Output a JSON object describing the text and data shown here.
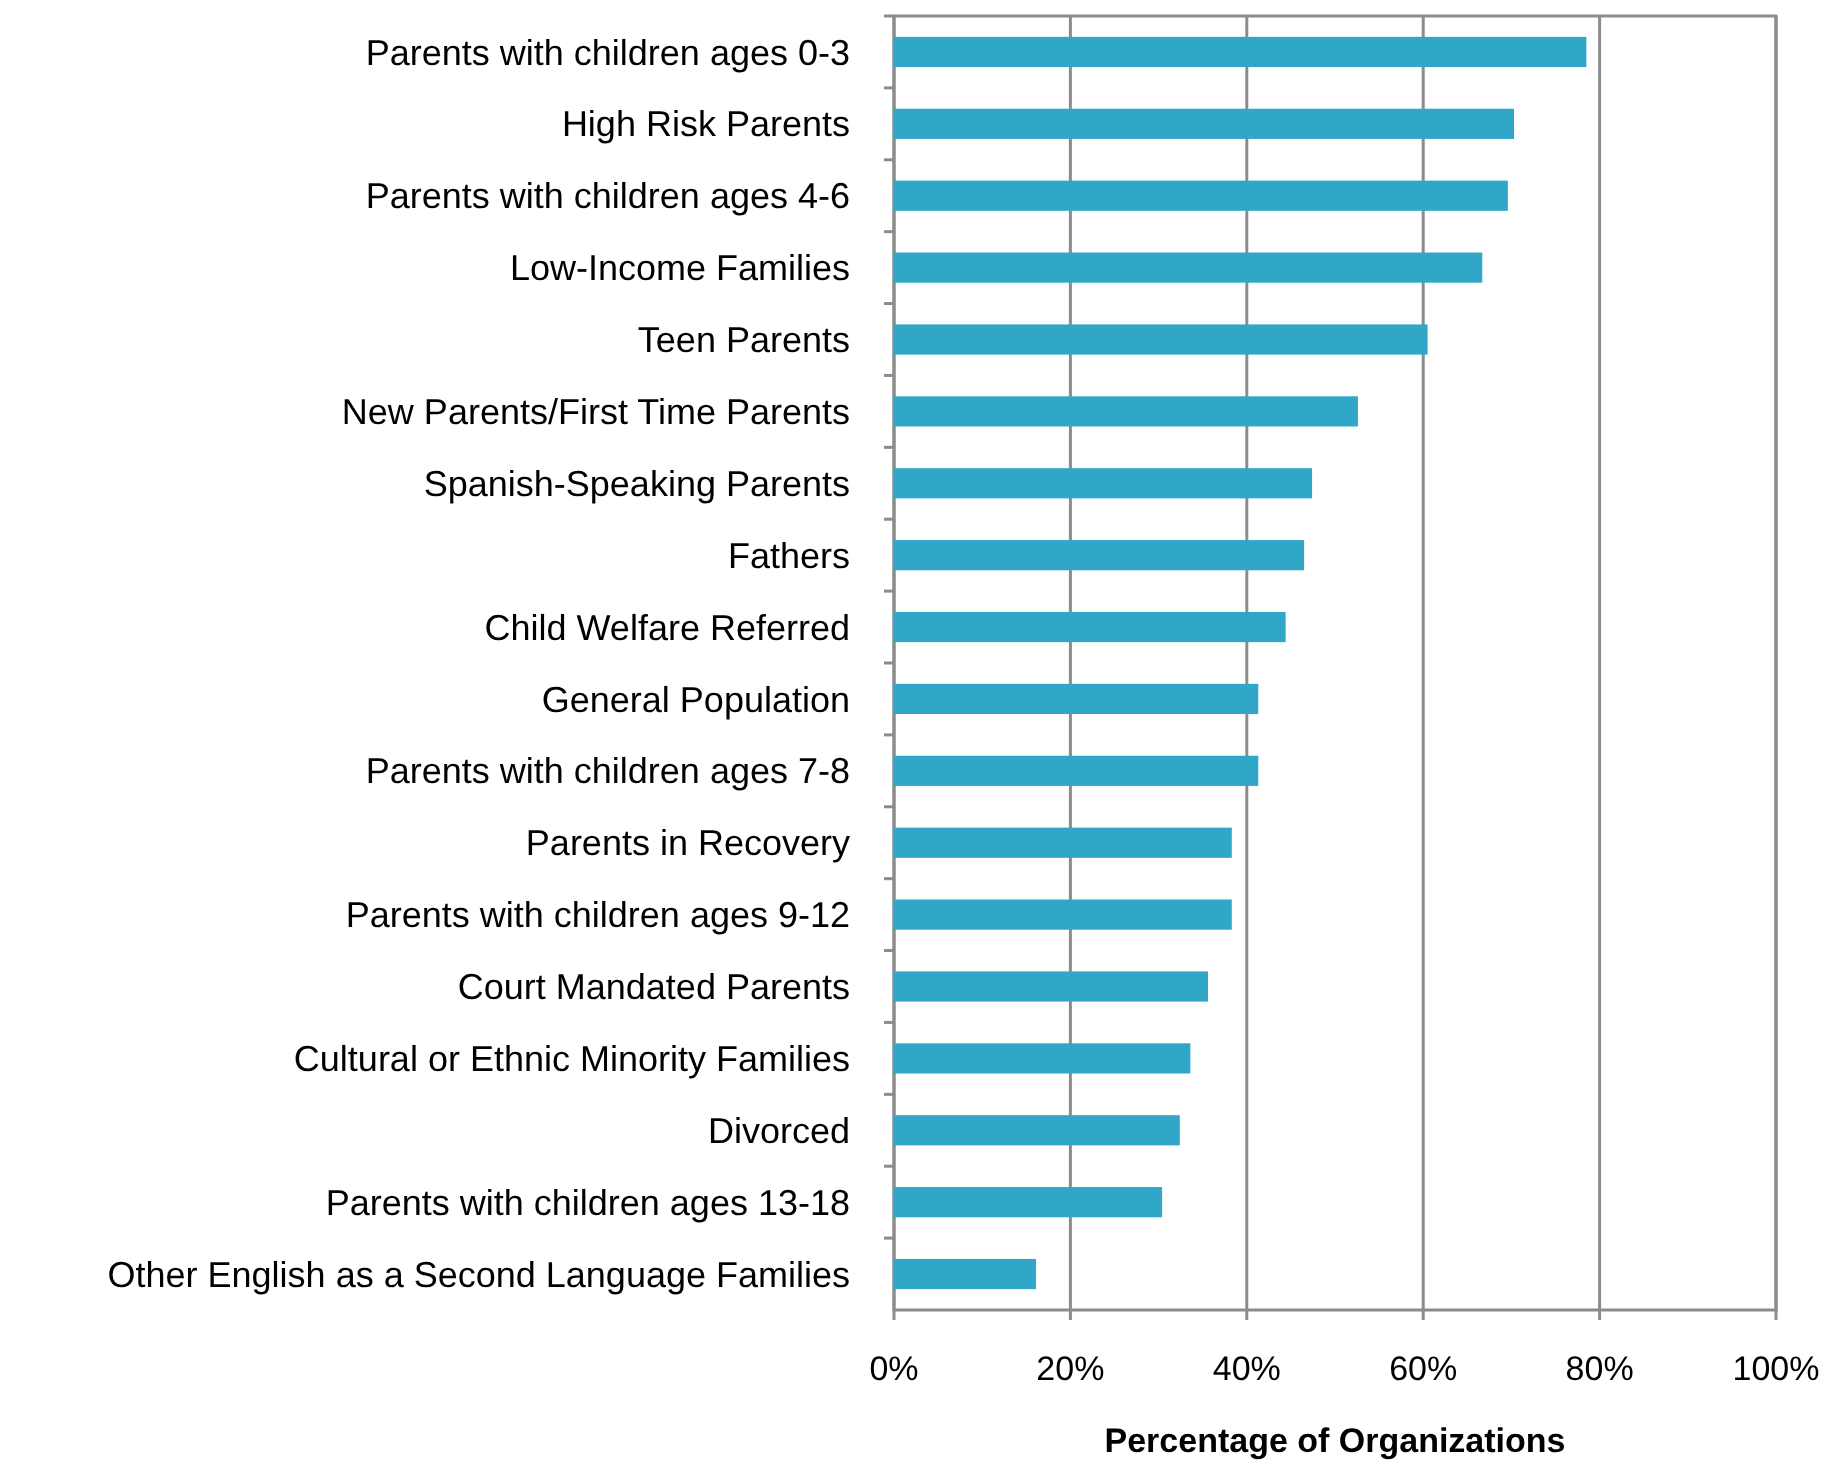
{
  "chart_data": {
    "type": "bar",
    "orientation": "horizontal",
    "xlabel": "Percentage of Organizations",
    "categories": [
      "Parents with children ages 0-3",
      "High Risk Parents",
      "Parents with children ages 4-6",
      "Low-Income Families",
      "Teen Parents",
      "New Parents/First Time Parents",
      "Spanish-Speaking Parents",
      "Fathers",
      "Child Welfare Referred",
      "General Population",
      "Parents with children ages 7-8",
      "Parents in Recovery",
      "Parents with children ages 9-12",
      "Court Mandated Parents",
      "Cultural or Ethnic Minority Families",
      "Divorced",
      "Parents with children ages 13-18",
      "Other English as a Second Language Families"
    ],
    "values": [
      78.5,
      70.3,
      69.6,
      66.7,
      60.5,
      52.6,
      47.4,
      46.5,
      44.4,
      41.3,
      41.3,
      38.3,
      38.3,
      35.6,
      33.6,
      32.4,
      30.4,
      16.1
    ],
    "color": "#31a7c8",
    "xlim": [
      0,
      100
    ],
    "xticks": [
      {
        "value": 0,
        "label": "0%"
      },
      {
        "value": 20,
        "label": "20%"
      },
      {
        "value": 40,
        "label": "40%"
      },
      {
        "value": 60,
        "label": "60%"
      },
      {
        "value": 80,
        "label": "80%"
      },
      {
        "value": 100,
        "label": "100%"
      }
    ],
    "grid": "x"
  }
}
